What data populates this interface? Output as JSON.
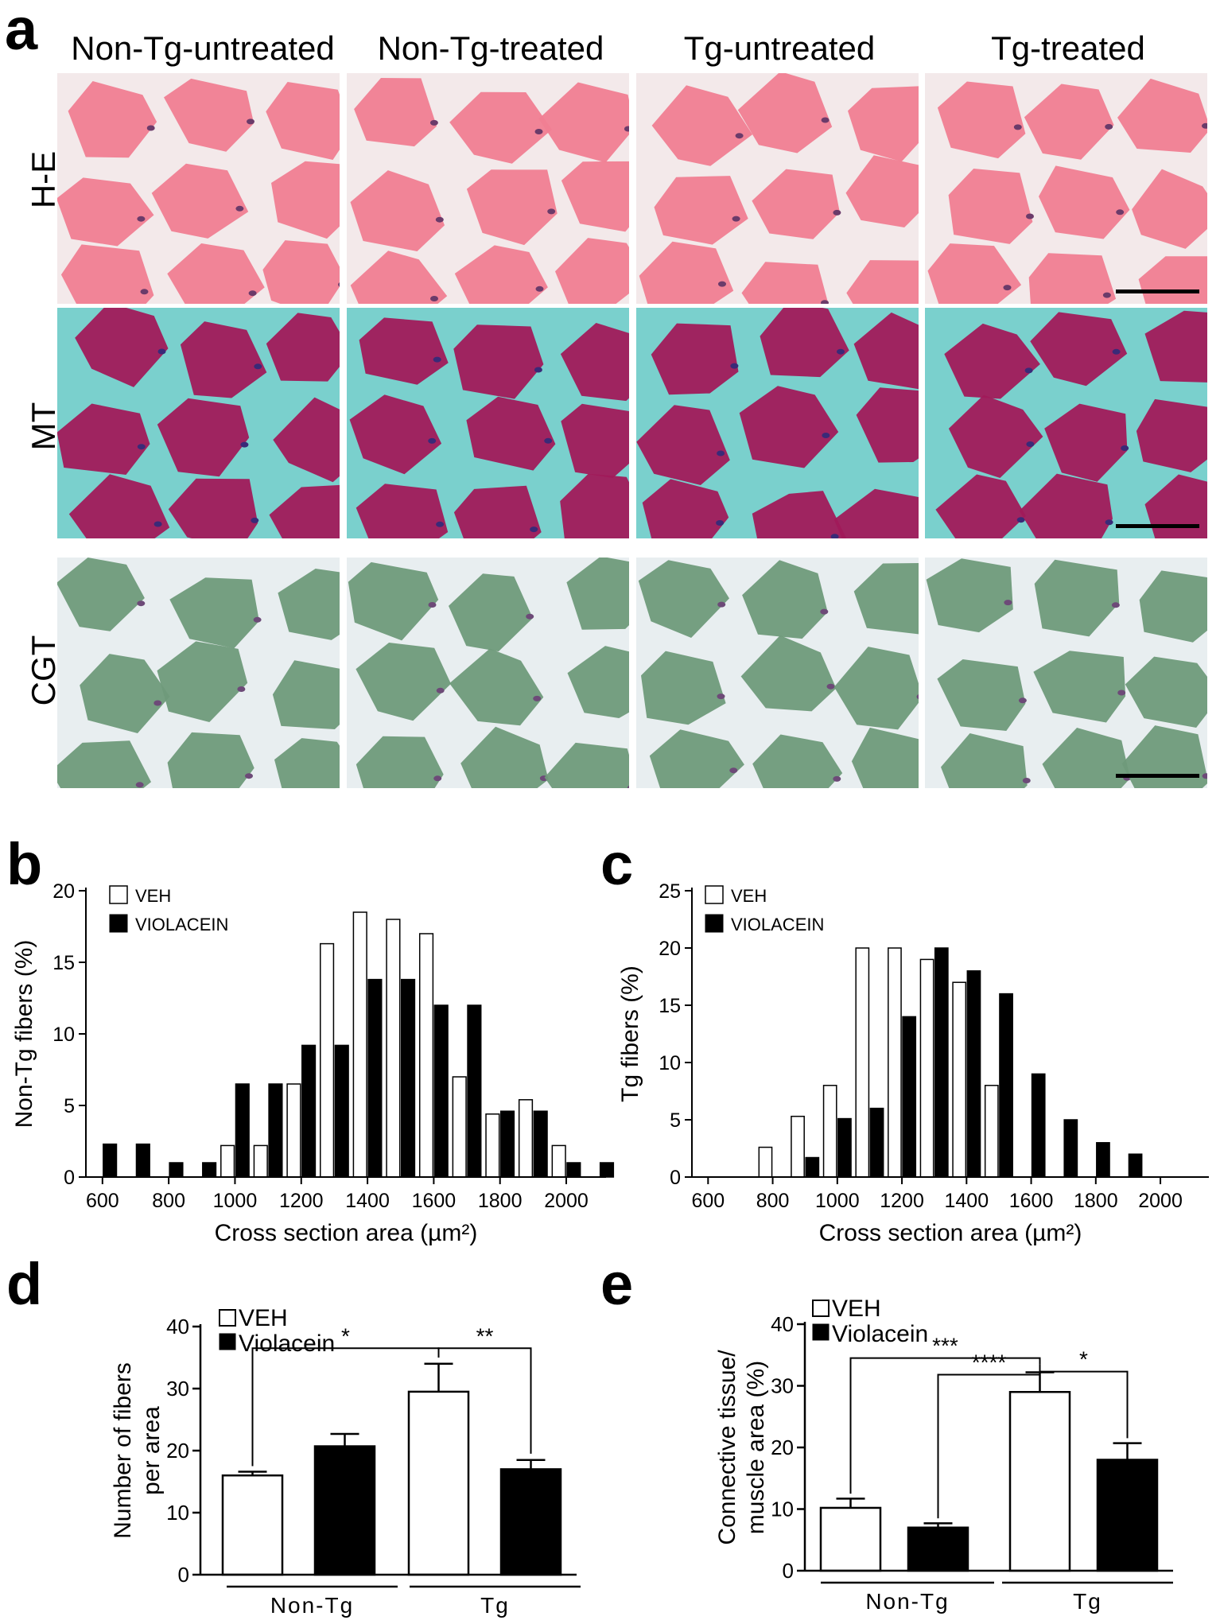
{
  "panel_a": {
    "letter": "a",
    "columns": [
      "Non-Tg-untreated",
      "Non-Tg-treated",
      "Tg-untreated",
      "Tg-treated"
    ],
    "rows": [
      "H-E",
      "MT",
      "CGT"
    ],
    "stain_colors": {
      "H-E": {
        "fiber": "#f07e92",
        "gap": "#f3e9ea",
        "nuc": "#6b3b6a"
      },
      "MT": {
        "fiber": "#a11a5a",
        "gap": "#7ad0cd",
        "nuc": "#3a2a78"
      },
      "CGT": {
        "fiber": "#6f9a7a",
        "gap": "#e8eef0",
        "nuc": "#6d4a78"
      }
    }
  },
  "chart_data": [
    {
      "panel": "b",
      "type": "bar",
      "xlabel": "Cross section area (µm²)",
      "ylabel": "Non-Tg fibers (%)",
      "xlim": [
        550,
        2120
      ],
      "ylim": [
        0,
        20
      ],
      "xticks": [
        600,
        800,
        1000,
        1200,
        1400,
        1600,
        1800,
        2000
      ],
      "yticks": [
        0,
        5,
        10,
        15,
        20
      ],
      "legend": [
        "VEH",
        "VIOLACEIN"
      ],
      "series": [
        {
          "name": "VEH",
          "x": [
            1000,
            1100,
            1200,
            1300,
            1400,
            1500,
            1600,
            1700,
            1800,
            1900,
            2000
          ],
          "values": [
            2.2,
            2.2,
            6.5,
            16.3,
            18.5,
            18.0,
            17.0,
            7.0,
            4.4,
            5.4,
            2.2
          ]
        },
        {
          "name": "VIOLACEIN",
          "x": [
            600,
            700,
            800,
            900,
            1000,
            1100,
            1200,
            1300,
            1400,
            1500,
            1600,
            1700,
            1800,
            1900,
            2000,
            2100
          ],
          "values": [
            2.3,
            2.3,
            1.0,
            1.0,
            6.5,
            6.5,
            9.2,
            9.2,
            13.8,
            13.8,
            12.0,
            12.0,
            4.6,
            4.6,
            1.0,
            1.0
          ]
        }
      ]
    },
    {
      "panel": "c",
      "type": "bar",
      "xlabel": "Cross section area (µm²)",
      "ylabel": "Tg fibers (%)",
      "xlim": [
        550,
        2150
      ],
      "ylim": [
        0,
        25
      ],
      "xticks": [
        600,
        800,
        1000,
        1200,
        1400,
        1600,
        1800,
        2000
      ],
      "yticks": [
        0,
        5,
        10,
        15,
        20,
        25
      ],
      "legend": [
        "VEH",
        "VIOLACEIN"
      ],
      "series": [
        {
          "name": "VEH",
          "x": [
            800,
            900,
            1000,
            1100,
            1200,
            1300,
            1400,
            1500
          ],
          "values": [
            2.6,
            5.3,
            8.0,
            20.0,
            20.0,
            19.0,
            17.0,
            8.0
          ]
        },
        {
          "name": "VIOLACEIN",
          "x": [
            900,
            1000,
            1100,
            1200,
            1300,
            1400,
            1500,
            1600,
            1700,
            1800,
            1900
          ],
          "values": [
            1.7,
            5.1,
            6.0,
            14.0,
            20.0,
            18.0,
            16.0,
            9.0,
            5.0,
            3.0,
            2.0
          ]
        }
      ]
    },
    {
      "panel": "d",
      "type": "bar",
      "ylabel_lines": [
        "Number of fibers",
        "per area"
      ],
      "ylim": [
        0,
        40
      ],
      "yticks": [
        0,
        10,
        20,
        30,
        40
      ],
      "groups": [
        "Non-Tg",
        "Tg"
      ],
      "legend": [
        "VEH",
        "Violacein"
      ],
      "series": [
        {
          "name": "VEH",
          "values": [
            16.0,
            29.5
          ],
          "errors": [
            0.6,
            4.5
          ]
        },
        {
          "name": "Violacein",
          "values": [
            20.7,
            17.0
          ],
          "errors": [
            2.0,
            1.5
          ]
        }
      ],
      "significance": [
        {
          "label": "*",
          "from": "Non-Tg VEH",
          "to": "Tg VEH"
        },
        {
          "label": "**",
          "from": "Tg VEH",
          "to": "Tg Violacein"
        }
      ]
    },
    {
      "panel": "e",
      "type": "bar",
      "ylabel_lines": [
        "Connective tissue/",
        "muscle area (%)"
      ],
      "ylim": [
        0,
        40
      ],
      "yticks": [
        0,
        10,
        20,
        30,
        40
      ],
      "groups": [
        "Non-Tg",
        "Tg"
      ],
      "legend": [
        "VEH",
        "Violacein"
      ],
      "series": [
        {
          "name": "VEH",
          "values": [
            10.2,
            29.0
          ],
          "errors": [
            1.5,
            3.2
          ]
        },
        {
          "name": "Violacein",
          "values": [
            7.0,
            18.0
          ],
          "errors": [
            0.7,
            2.7
          ]
        }
      ],
      "significance": [
        {
          "label": "***",
          "from": "Non-Tg VEH",
          "to": "Tg VEH"
        },
        {
          "label": "****",
          "from": "Non-Tg Violacein",
          "to": "Tg VEH"
        },
        {
          "label": "*",
          "from": "Tg VEH",
          "to": "Tg Violacein"
        }
      ]
    }
  ],
  "panel_letters": {
    "b": "b",
    "c": "c",
    "d": "d",
    "e": "e"
  }
}
